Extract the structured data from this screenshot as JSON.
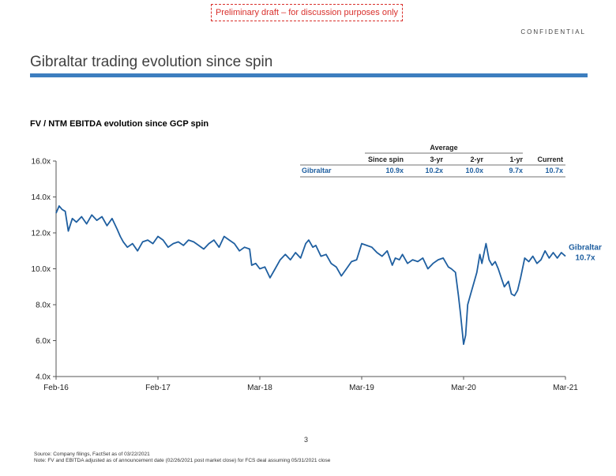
{
  "draft_banner": "Preliminary draft – for discussion purposes only",
  "confidential": "CONFIDENTIAL",
  "page_title": "Gibraltar trading evolution since spin",
  "page_number": "3",
  "footnotes": [
    "Source: Company filings, FactSet as of 03/22/2021",
    "Note: FV and EBITDA adjusted as of announcement date (02/26/2021 post market close) for FCS deal assuming 05/31/2021 close"
  ],
  "colors": {
    "series": "#1f5fa0",
    "accent_bar": "#3d7ebf",
    "draft": "#d9302c"
  },
  "chart_data": {
    "type": "line",
    "title": "FV / NTM EBITDA evolution since GCP spin",
    "xlabel": "",
    "ylabel": "",
    "x_ticks": [
      "Feb-16",
      "Feb-17",
      "Mar-18",
      "Mar-19",
      "Mar-20",
      "Mar-21"
    ],
    "ylim": [
      4.0,
      16.0
    ],
    "y_ticks": [
      "4.0x",
      "6.0x",
      "8.0x",
      "10.0x",
      "12.0x",
      "14.0x",
      "16.0x"
    ],
    "series": [
      {
        "name": "Gibraltar",
        "end_label": "10.7x",
        "points": [
          [
            0.0,
            13.1
          ],
          [
            0.03,
            13.5
          ],
          [
            0.06,
            13.3
          ],
          [
            0.09,
            13.2
          ],
          [
            0.12,
            12.1
          ],
          [
            0.16,
            12.8
          ],
          [
            0.2,
            12.6
          ],
          [
            0.25,
            12.9
          ],
          [
            0.3,
            12.5
          ],
          [
            0.35,
            13.0
          ],
          [
            0.4,
            12.7
          ],
          [
            0.45,
            12.9
          ],
          [
            0.5,
            12.4
          ],
          [
            0.55,
            12.8
          ],
          [
            0.6,
            12.2
          ],
          [
            0.63,
            11.8
          ],
          [
            0.66,
            11.5
          ],
          [
            0.7,
            11.2
          ],
          [
            0.75,
            11.4
          ],
          [
            0.8,
            11.0
          ],
          [
            0.85,
            11.5
          ],
          [
            0.9,
            11.6
          ],
          [
            0.95,
            11.4
          ],
          [
            1.0,
            11.8
          ],
          [
            1.05,
            11.6
          ],
          [
            1.1,
            11.2
          ],
          [
            1.15,
            11.4
          ],
          [
            1.2,
            11.5
          ],
          [
            1.25,
            11.3
          ],
          [
            1.3,
            11.6
          ],
          [
            1.35,
            11.5
          ],
          [
            1.4,
            11.3
          ],
          [
            1.45,
            11.1
          ],
          [
            1.5,
            11.4
          ],
          [
            1.55,
            11.6
          ],
          [
            1.6,
            11.2
          ],
          [
            1.65,
            11.8
          ],
          [
            1.7,
            11.6
          ],
          [
            1.75,
            11.4
          ],
          [
            1.8,
            11.0
          ],
          [
            1.85,
            11.2
          ],
          [
            1.9,
            11.1
          ],
          [
            1.92,
            10.2
          ],
          [
            1.96,
            10.3
          ],
          [
            2.0,
            10.0
          ],
          [
            2.05,
            10.1
          ],
          [
            2.1,
            9.5
          ],
          [
            2.15,
            10.0
          ],
          [
            2.2,
            10.5
          ],
          [
            2.25,
            10.8
          ],
          [
            2.3,
            10.5
          ],
          [
            2.35,
            10.9
          ],
          [
            2.4,
            10.6
          ],
          [
            2.45,
            11.4
          ],
          [
            2.48,
            11.6
          ],
          [
            2.52,
            11.2
          ],
          [
            2.55,
            11.3
          ],
          [
            2.6,
            10.7
          ],
          [
            2.65,
            10.8
          ],
          [
            2.7,
            10.3
          ],
          [
            2.75,
            10.1
          ],
          [
            2.8,
            9.6
          ],
          [
            2.85,
            10.0
          ],
          [
            2.9,
            10.4
          ],
          [
            2.95,
            10.5
          ],
          [
            3.0,
            11.4
          ],
          [
            3.05,
            11.3
          ],
          [
            3.1,
            11.2
          ],
          [
            3.15,
            10.9
          ],
          [
            3.2,
            10.7
          ],
          [
            3.25,
            11.0
          ],
          [
            3.3,
            10.2
          ],
          [
            3.33,
            10.6
          ],
          [
            3.37,
            10.5
          ],
          [
            3.4,
            10.8
          ],
          [
            3.45,
            10.3
          ],
          [
            3.5,
            10.5
          ],
          [
            3.55,
            10.4
          ],
          [
            3.6,
            10.6
          ],
          [
            3.65,
            10.0
          ],
          [
            3.7,
            10.3
          ],
          [
            3.75,
            10.5
          ],
          [
            3.8,
            10.6
          ],
          [
            3.85,
            10.1
          ],
          [
            3.88,
            10.0
          ],
          [
            3.92,
            9.8
          ],
          [
            3.95,
            8.5
          ],
          [
            3.97,
            7.5
          ],
          [
            4.0,
            5.8
          ],
          [
            4.02,
            6.3
          ],
          [
            4.04,
            8.0
          ],
          [
            4.07,
            8.6
          ],
          [
            4.1,
            9.2
          ],
          [
            4.13,
            9.8
          ],
          [
            4.16,
            10.8
          ],
          [
            4.18,
            10.3
          ],
          [
            4.22,
            11.4
          ],
          [
            4.25,
            10.5
          ],
          [
            4.28,
            10.2
          ],
          [
            4.31,
            10.4
          ],
          [
            4.34,
            10.0
          ],
          [
            4.37,
            9.5
          ],
          [
            4.4,
            9.0
          ],
          [
            4.44,
            9.3
          ],
          [
            4.47,
            8.6
          ],
          [
            4.5,
            8.5
          ],
          [
            4.53,
            8.8
          ],
          [
            4.56,
            9.5
          ],
          [
            4.6,
            10.6
          ],
          [
            4.64,
            10.4
          ],
          [
            4.68,
            10.7
          ],
          [
            4.72,
            10.3
          ],
          [
            4.76,
            10.5
          ],
          [
            4.8,
            11.0
          ],
          [
            4.84,
            10.6
          ],
          [
            4.88,
            10.9
          ],
          [
            4.92,
            10.6
          ],
          [
            4.96,
            10.9
          ],
          [
            5.0,
            10.7
          ]
        ]
      }
    ],
    "summary_table": {
      "group_header": "Average",
      "columns": [
        "Since spin",
        "3-yr",
        "2-yr",
        "1-yr",
        "Current"
      ],
      "rows": [
        {
          "name": "Gibraltar",
          "values": [
            "10.9x",
            "10.2x",
            "10.0x",
            "9.7x",
            "10.7x"
          ]
        }
      ]
    }
  }
}
